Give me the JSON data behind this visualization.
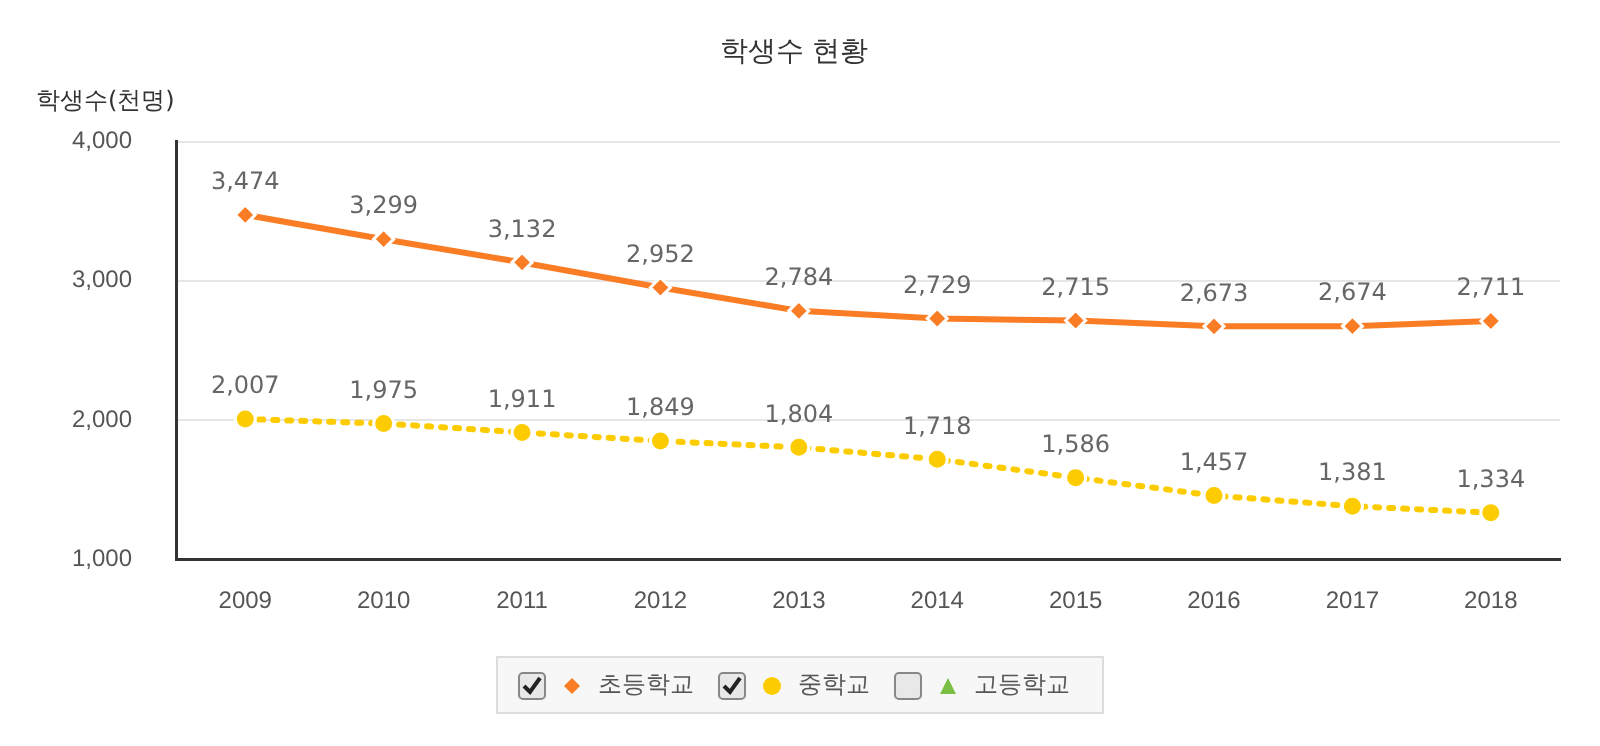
{
  "chart_data": {
    "type": "line",
    "title": "학생수 현황",
    "ylabel": "학생수(천명)",
    "categories": [
      "2009",
      "2010",
      "2011",
      "2012",
      "2013",
      "2014",
      "2015",
      "2016",
      "2017",
      "2018"
    ],
    "series": [
      {
        "name": "초등학교",
        "color": "#fa7d25",
        "marker": "diamond",
        "line_style": "solid",
        "values": [
          3474,
          3299,
          3132,
          2952,
          2784,
          2729,
          2715,
          2673,
          2674,
          2711
        ],
        "value_labels": [
          "3,474",
          "3,299",
          "3,132",
          "2,952",
          "2,784",
          "2,729",
          "2,715",
          "2,673",
          "2,674",
          "2,711"
        ]
      },
      {
        "name": "중학교",
        "color": "#fccc00",
        "marker": "circle",
        "line_style": "dotted",
        "values": [
          2007,
          1975,
          1911,
          1849,
          1804,
          1718,
          1586,
          1457,
          1381,
          1334
        ],
        "value_labels": [
          "2,007",
          "1,975",
          "1,911",
          "1,849",
          "1,804",
          "1,718",
          "1,586",
          "1,457",
          "1,381",
          "1,334"
        ]
      },
      {
        "name": "고등학교",
        "color": "#7ac143",
        "marker": "triangle",
        "line_style": "solid",
        "values": [
          null,
          null,
          null,
          null,
          null,
          null,
          null,
          null,
          null,
          null
        ]
      }
    ],
    "ylim": [
      1000,
      4000
    ],
    "yticks": [
      {
        "value": 1000,
        "label": "1,000"
      },
      {
        "value": 2000,
        "label": "2,000"
      },
      {
        "value": 3000,
        "label": "3,000"
      },
      {
        "value": 4000,
        "label": "4,000"
      }
    ],
    "grid": "y",
    "legend": "bottom"
  }
}
